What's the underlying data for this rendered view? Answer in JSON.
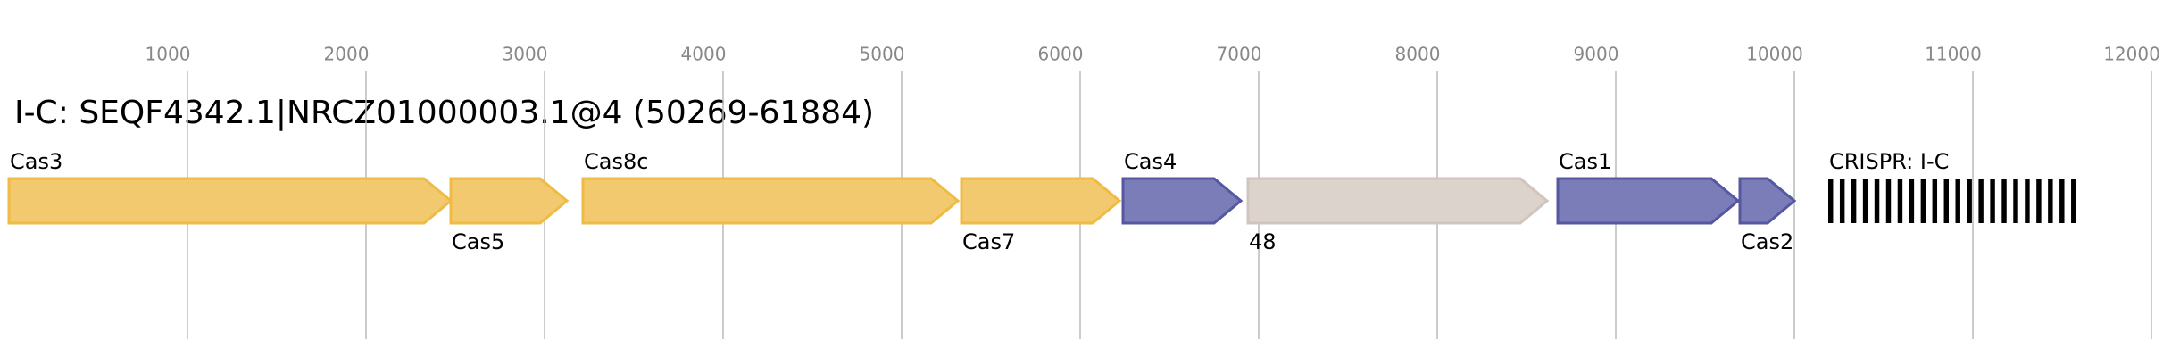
{
  "chart_data": {
    "type": "gene-map",
    "title": "I-C: SEQF4342.1|NRCZ01000003.1@4 (50269-61884)",
    "xlim": [
      0,
      12000
    ],
    "xticks": [
      1000,
      2000,
      3000,
      4000,
      5000,
      6000,
      7000,
      8000,
      9000,
      10000,
      11000,
      12000
    ],
    "grid": true,
    "genes": [
      {
        "name": "Cas3",
        "start": 0,
        "end": 2475,
        "color": "#f2c96e",
        "label_position": "above"
      },
      {
        "name": "Cas5",
        "start": 2475,
        "end": 3125,
        "color": "#f2c96e",
        "label_position": "below"
      },
      {
        "name": "Cas8c",
        "start": 3215,
        "end": 5315,
        "color": "#f2c96e",
        "label_position": "above"
      },
      {
        "name": "Cas7",
        "start": 5335,
        "end": 6220,
        "color": "#f2c96e",
        "label_position": "below"
      },
      {
        "name": "Cas4",
        "start": 6240,
        "end": 6900,
        "color": "#7b7db8",
        "label_position": "above"
      },
      {
        "name": "48",
        "start": 6940,
        "end": 8615,
        "color": "#ddd3cd",
        "label_position": "below"
      },
      {
        "name": "Cas1",
        "start": 8675,
        "end": 9685,
        "color": "#7b7db8",
        "label_position": "above"
      },
      {
        "name": "Cas2",
        "start": 9695,
        "end": 10000,
        "color": "#7b7db8",
        "label_position": "below"
      }
    ],
    "crispr": {
      "name": "CRISPR: I-C",
      "start": 10190,
      "end": 11615,
      "color": "#000000"
    }
  }
}
